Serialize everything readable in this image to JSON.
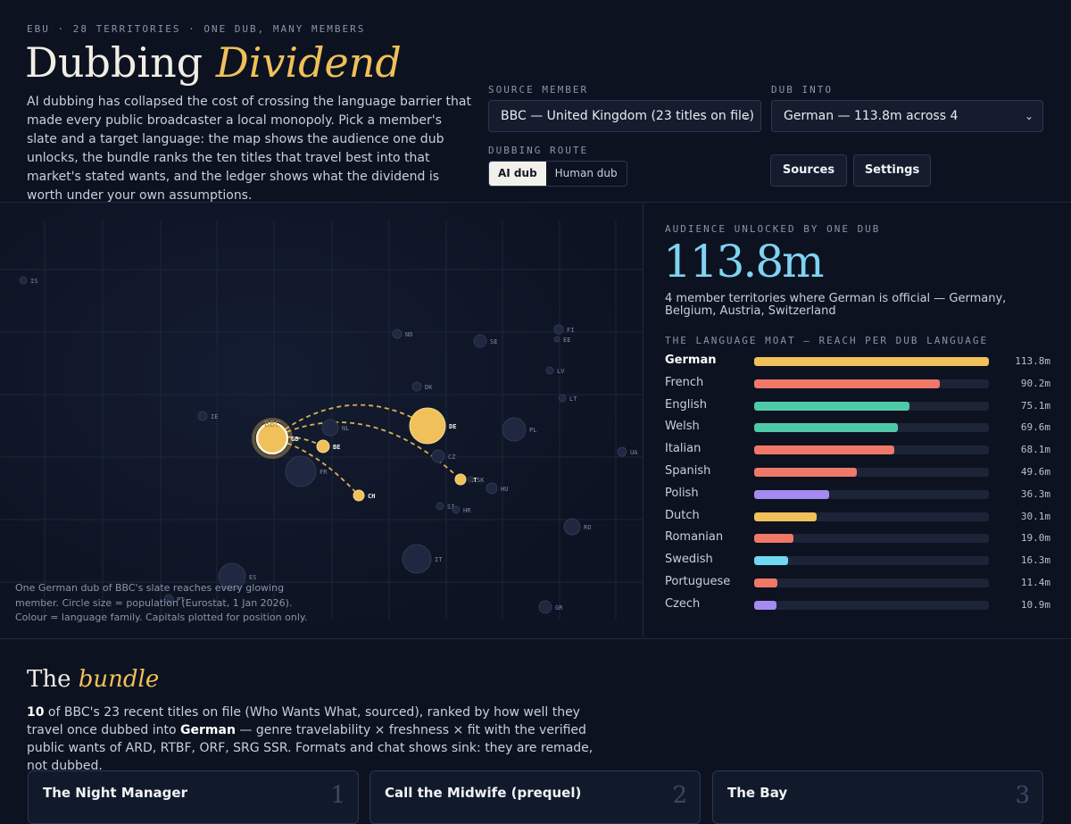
{
  "header": {
    "kicker": "EBU · 28 TERRITORIES · ONE DUB, MANY MEMBERS",
    "title_main": "Dubbing ",
    "title_accent": "Dividend",
    "intro": "AI dubbing has collapsed the cost of crossing the language barrier that made every public broadcaster a local monopoly. Pick a member's slate and a target language: the map shows the audience one dub unlocks, the bundle ranks the ten titles that travel best into that market's stated wants, and the ledger shows what the dividend is worth under your own assumptions."
  },
  "controls": {
    "source_label": "SOURCE MEMBER",
    "source_value": "BBC — United Kingdom (23 titles on file)",
    "dub_label": "DUB INTO",
    "dub_value": "German — 113.8m across 4",
    "route_label": "DUBBING ROUTE",
    "route_options": [
      "AI dub",
      "Human dub"
    ],
    "sources_button": "Sources",
    "settings_button": "Settings"
  },
  "map": {
    "source_tag": "BBC",
    "note": "One German dub of BBC's slate reaches every glowing member. Circle size = population (Eurostat, 1 Jan 2026). Colour = language family. Capitals plotted for position only.",
    "highlight_color": "#f0c05a",
    "countries": [
      {
        "code": "IS",
        "lit": false
      },
      {
        "code": "NO",
        "lit": false
      },
      {
        "code": "SE",
        "lit": false
      },
      {
        "code": "FI",
        "lit": false
      },
      {
        "code": "EE",
        "lit": false
      },
      {
        "code": "LV",
        "lit": false
      },
      {
        "code": "LT",
        "lit": false
      },
      {
        "code": "DK",
        "lit": false
      },
      {
        "code": "IE",
        "lit": false
      },
      {
        "code": "GB",
        "lit": true
      },
      {
        "code": "NL",
        "lit": false
      },
      {
        "code": "BE",
        "lit": true
      },
      {
        "code": "DE",
        "lit": true
      },
      {
        "code": "PL",
        "lit": false
      },
      {
        "code": "UA",
        "lit": false
      },
      {
        "code": "CZ",
        "lit": false
      },
      {
        "code": "FR",
        "lit": false
      },
      {
        "code": "AT",
        "lit": true
      },
      {
        "code": "SK",
        "lit": false
      },
      {
        "code": "HU",
        "lit": false
      },
      {
        "code": "CH",
        "lit": true
      },
      {
        "code": "SI",
        "lit": false
      },
      {
        "code": "HR",
        "lit": false
      },
      {
        "code": "RO",
        "lit": false
      },
      {
        "code": "IT",
        "lit": false
      },
      {
        "code": "ES",
        "lit": false
      },
      {
        "code": "PT",
        "lit": false
      },
      {
        "code": "GR",
        "lit": false
      }
    ]
  },
  "audience": {
    "label": "AUDIENCE UNLOCKED BY ONE DUB",
    "value": "113.8m",
    "description": "4 member territories where German is official — Germany, Belgium, Austria, Switzerland"
  },
  "moat": {
    "label": "THE LANGUAGE MOAT — REACH PER DUB LANGUAGE",
    "max": 113.8,
    "rows": [
      {
        "name": "German",
        "value": 113.8,
        "display": "113.8m",
        "color": "#f0c05a",
        "selected": true
      },
      {
        "name": "French",
        "value": 90.2,
        "display": "90.2m",
        "color": "#f07868",
        "selected": false
      },
      {
        "name": "English",
        "value": 75.1,
        "display": "75.1m",
        "color": "#4fcaa8",
        "selected": false
      },
      {
        "name": "Welsh",
        "value": 69.6,
        "display": "69.6m",
        "color": "#4fcaa8",
        "selected": false
      },
      {
        "name": "Italian",
        "value": 68.1,
        "display": "68.1m",
        "color": "#f07868",
        "selected": false
      },
      {
        "name": "Spanish",
        "value": 49.6,
        "display": "49.6m",
        "color": "#f07868",
        "selected": false
      },
      {
        "name": "Polish",
        "value": 36.3,
        "display": "36.3m",
        "color": "#a58af0",
        "selected": false
      },
      {
        "name": "Dutch",
        "value": 30.1,
        "display": "30.1m",
        "color": "#f0c05a",
        "selected": false
      },
      {
        "name": "Romanian",
        "value": 19.0,
        "display": "19.0m",
        "color": "#f07868",
        "selected": false
      },
      {
        "name": "Swedish",
        "value": 16.3,
        "display": "16.3m",
        "color": "#6fd8f2",
        "selected": false
      },
      {
        "name": "Portuguese",
        "value": 11.4,
        "display": "11.4m",
        "color": "#f07868",
        "selected": false
      },
      {
        "name": "Czech",
        "value": 10.9,
        "display": "10.9m",
        "color": "#a58af0",
        "selected": false
      }
    ]
  },
  "bundle": {
    "title_main": "The ",
    "title_accent": "bundle",
    "desc_count": "10",
    "desc_part1": " of BBC's 23 recent titles on file (Who Wants What, sourced), ranked by how well they travel once dubbed into ",
    "desc_lang": "German",
    "desc_part2": " — genre travelability × freshness × fit with the verified public wants of ARD, RTBF, ORF, SRG SSR. Formats and chat shows sink: they are remade, not dubbed.",
    "cards": [
      {
        "title": "The Night Manager",
        "rank": "1"
      },
      {
        "title": "Call the Midwife (prequel)",
        "rank": "2"
      },
      {
        "title": "The Bay",
        "rank": "3"
      }
    ]
  }
}
